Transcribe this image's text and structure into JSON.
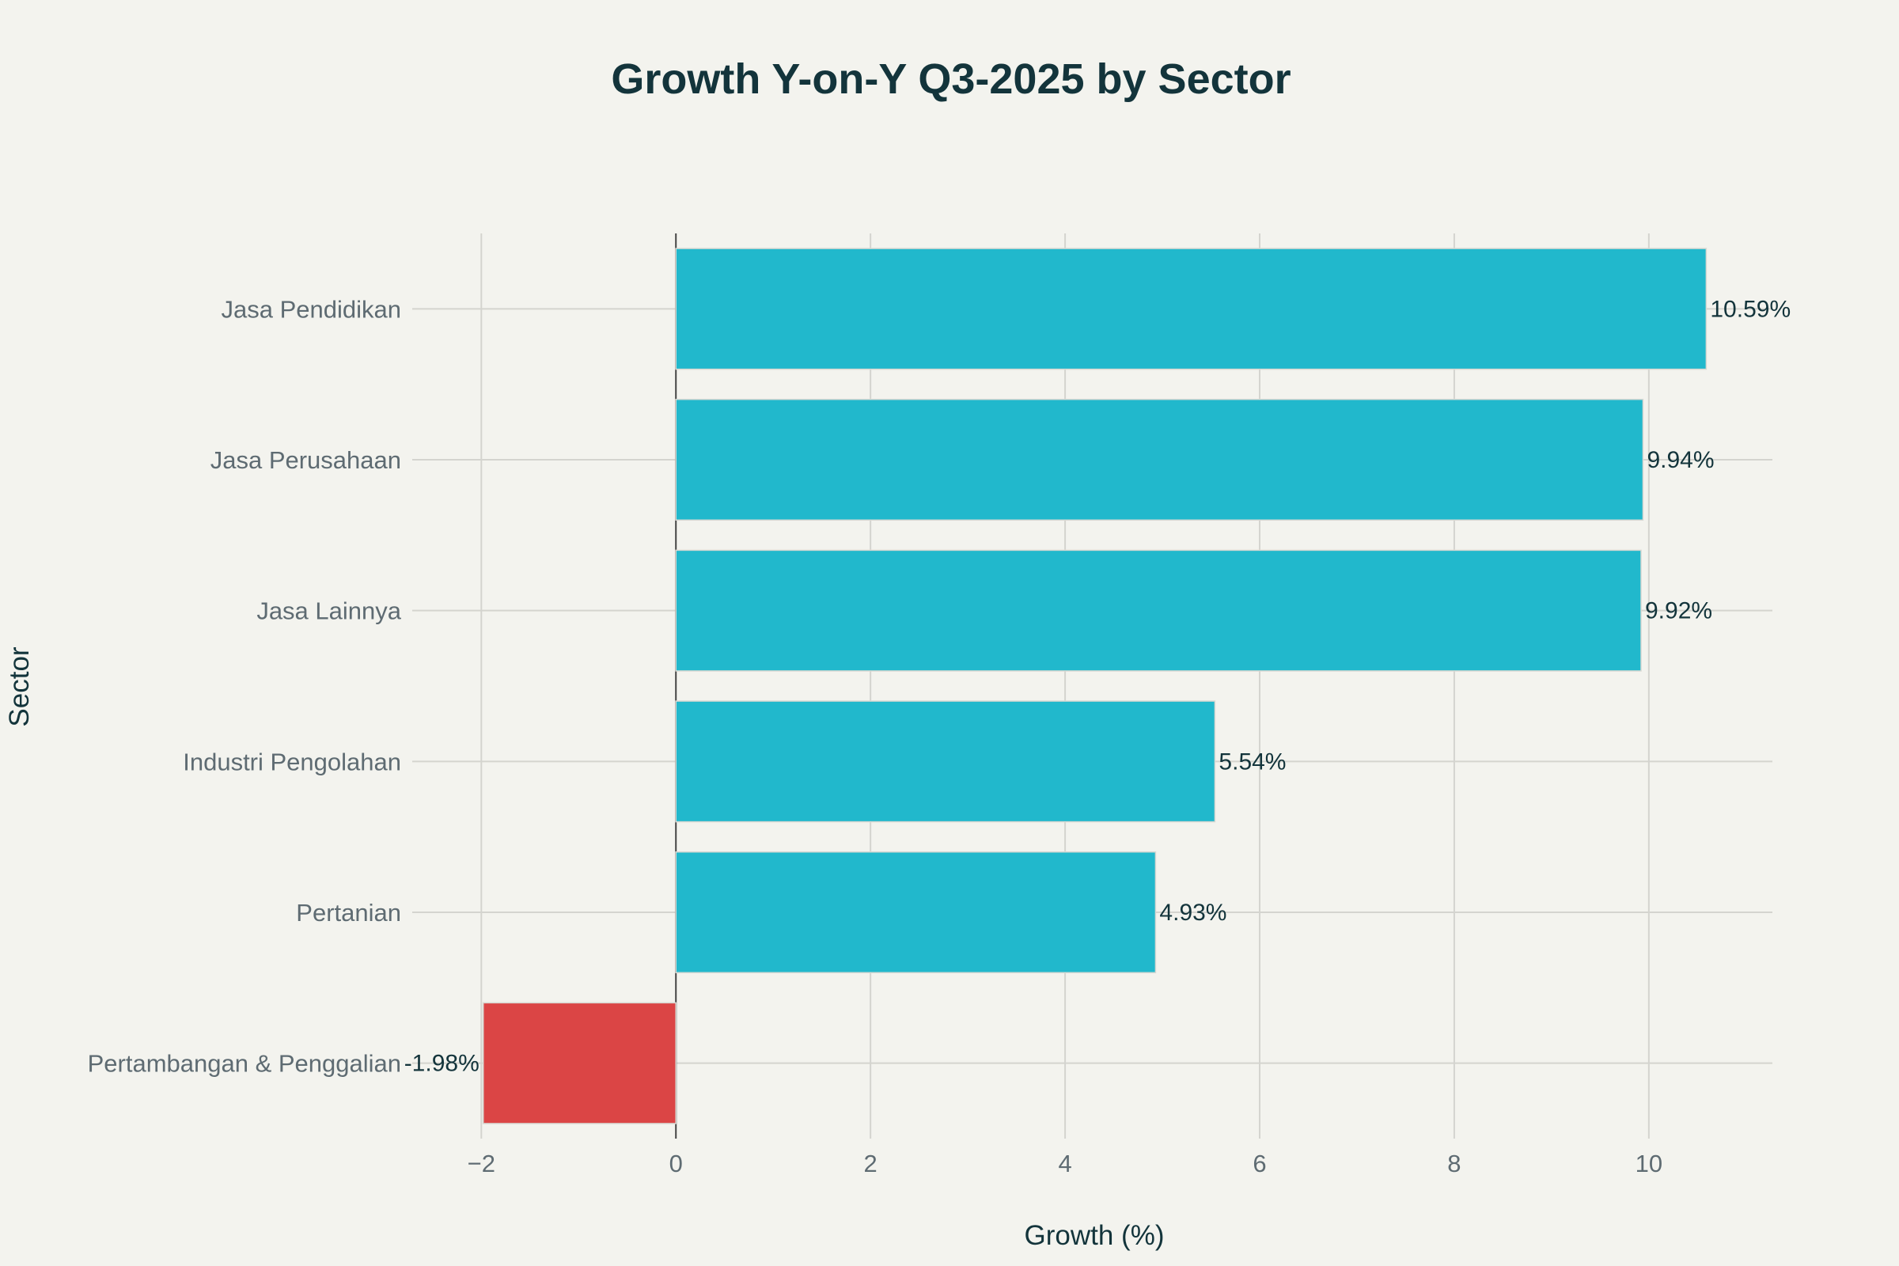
{
  "chart_data": {
    "type": "bar",
    "orientation": "horizontal",
    "title": "Growth Y-on-Y Q3-2025 by Sector",
    "xlabel": "Growth (%)",
    "ylabel": "Sector",
    "categories": [
      "Jasa Pendidikan",
      "Jasa Perusahaan",
      "Jasa Lainnya",
      "Industri Pengolahan",
      "Pertanian",
      "Pertambangan & Penggalian"
    ],
    "values": [
      10.59,
      9.94,
      9.92,
      5.54,
      4.93,
      -1.98
    ],
    "data_labels": [
      "10.59%",
      "9.94%",
      "9.92%",
      "5.54%",
      "4.93%",
      "-1.98%"
    ],
    "xticks": [
      -2,
      0,
      2,
      4,
      6,
      8,
      10
    ],
    "xtick_labels": [
      "−2",
      "0",
      "2",
      "4",
      "6",
      "8",
      "10"
    ],
    "xlim": [
      -2.71,
      11.27
    ],
    "grid": true,
    "legend": "none",
    "colors": {
      "positive": "#21b8cc",
      "negative": "#db4545"
    }
  }
}
